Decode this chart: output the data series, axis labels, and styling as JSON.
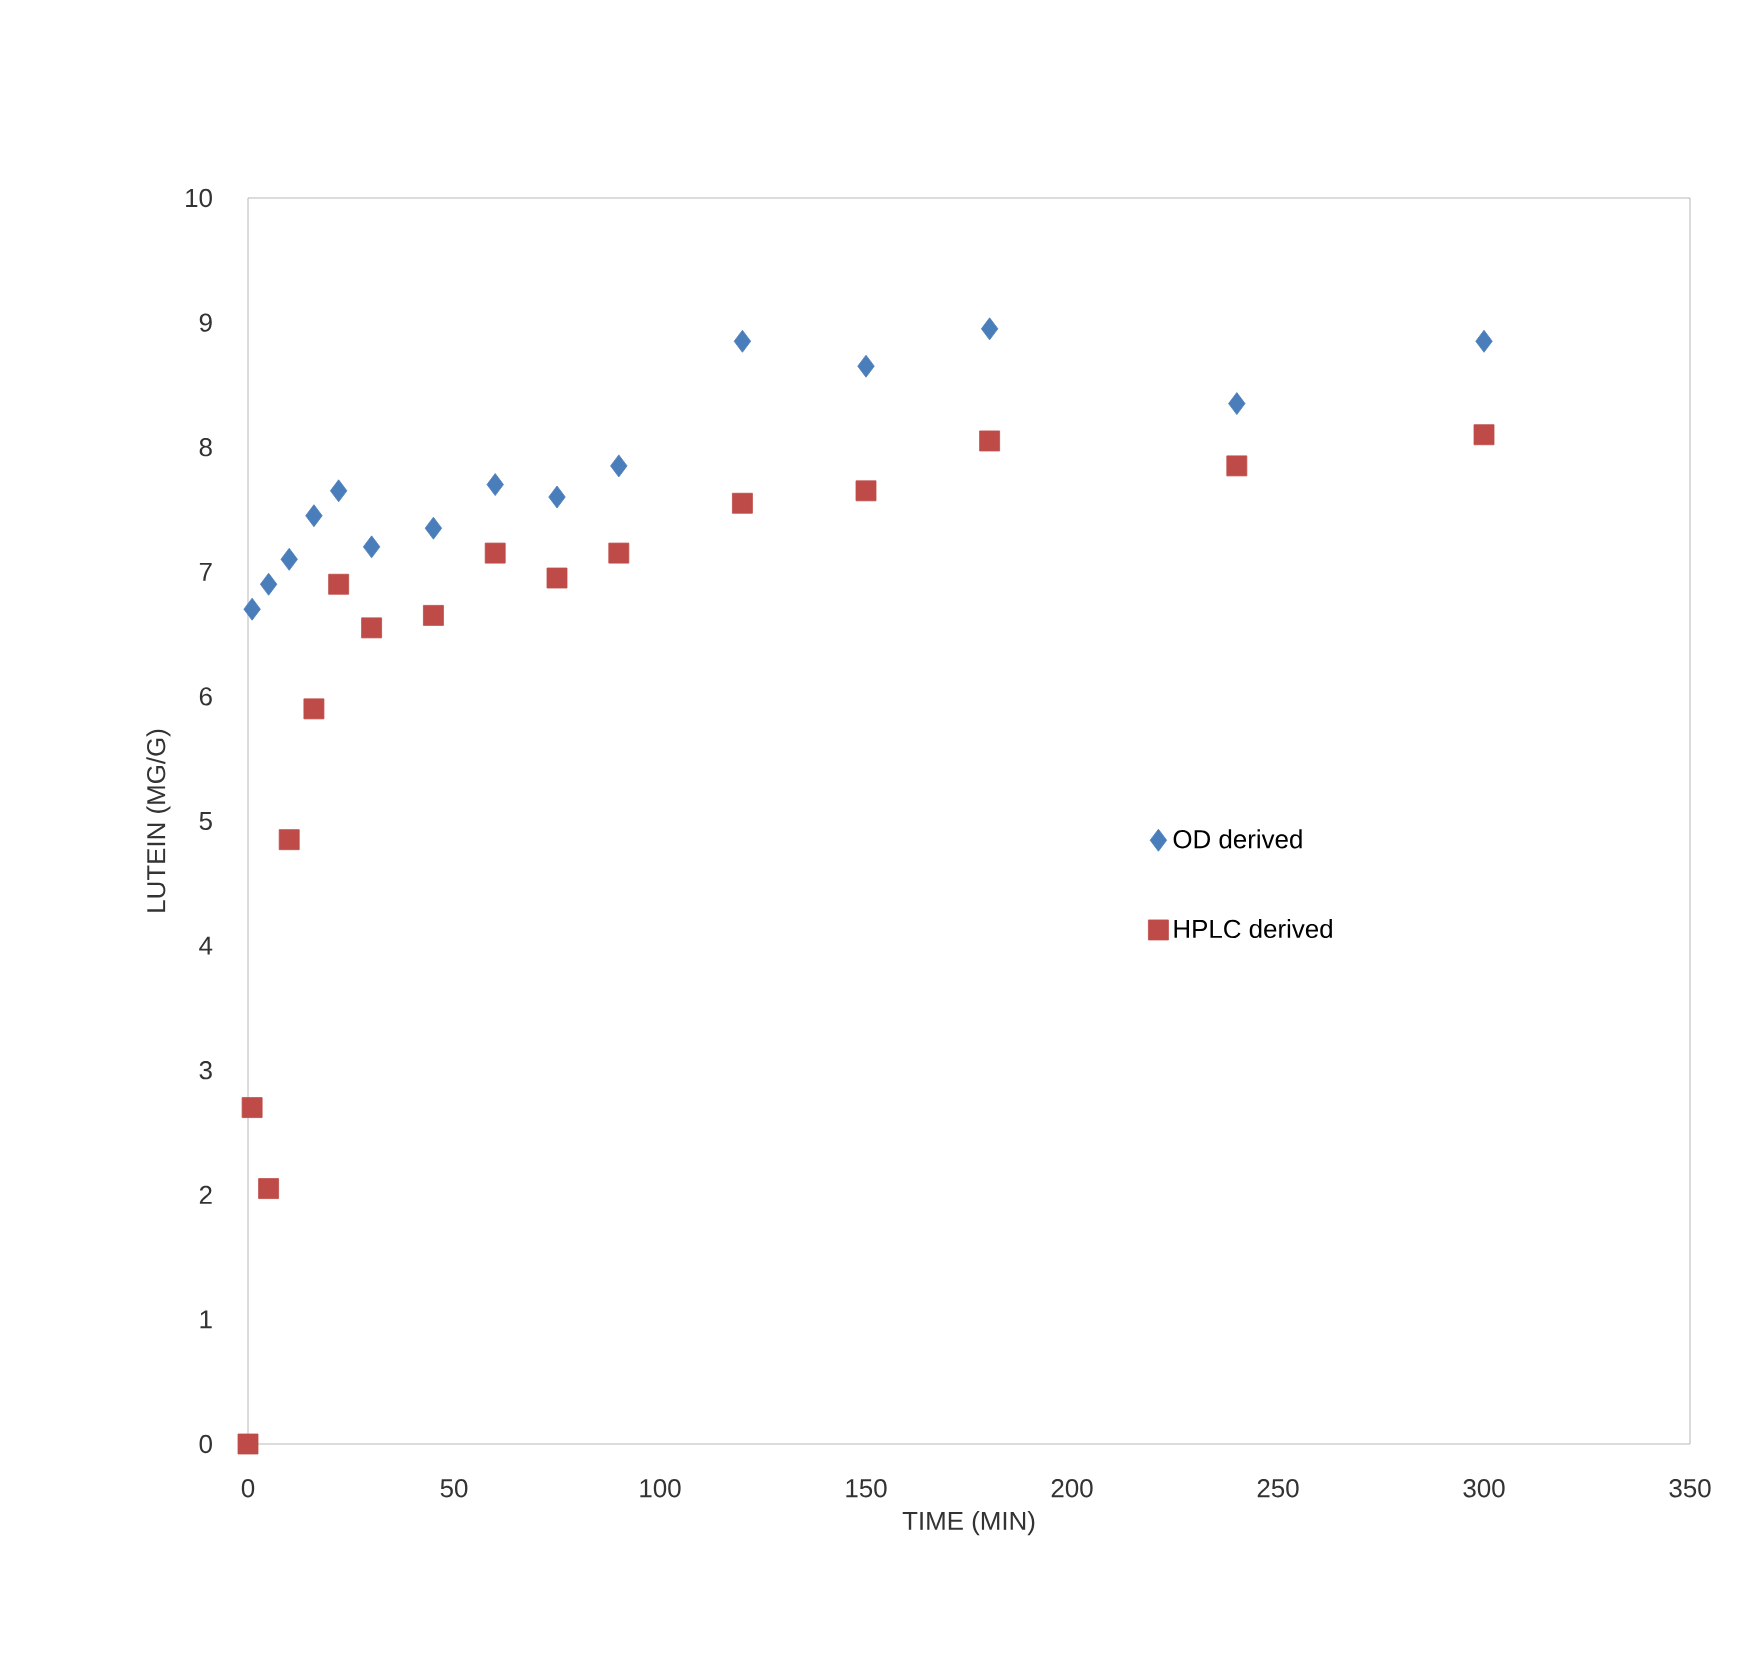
{
  "chart_data": {
    "type": "scatter",
    "xlabel": "TIME (MIN)",
    "ylabel": "LUTEIN (MG/G)",
    "xlim": [
      0,
      350
    ],
    "xticks": [
      0,
      50,
      100,
      150,
      200,
      250,
      300,
      350
    ],
    "ylim": [
      0,
      10
    ],
    "yticks": [
      0,
      1,
      2,
      3,
      4,
      5,
      6,
      7,
      8,
      9,
      10
    ],
    "legend": "right",
    "grid": false,
    "series": [
      {
        "name": "OD derived",
        "color": "#4a7ebb",
        "marker": "diamond",
        "x": [
          1,
          5,
          10,
          16,
          22,
          30,
          45,
          60,
          75,
          90,
          120,
          150,
          180,
          240,
          300
        ],
        "values": [
          6.7,
          6.9,
          7.1,
          7.45,
          7.65,
          7.2,
          7.35,
          7.7,
          7.6,
          7.85,
          8.85,
          8.65,
          8.95,
          8.35,
          8.85
        ]
      },
      {
        "name": "HPLC derived",
        "color": "#be4b48",
        "marker": "square",
        "x": [
          0,
          1,
          5,
          10,
          16,
          22,
          30,
          45,
          60,
          75,
          90,
          120,
          150,
          180,
          240,
          300
        ],
        "values": [
          0,
          2.7,
          2.05,
          4.85,
          5.9,
          6.9,
          6.55,
          6.65,
          7.15,
          6.95,
          7.15,
          7.55,
          7.65,
          8.05,
          7.85,
          8.1
        ]
      }
    ]
  }
}
